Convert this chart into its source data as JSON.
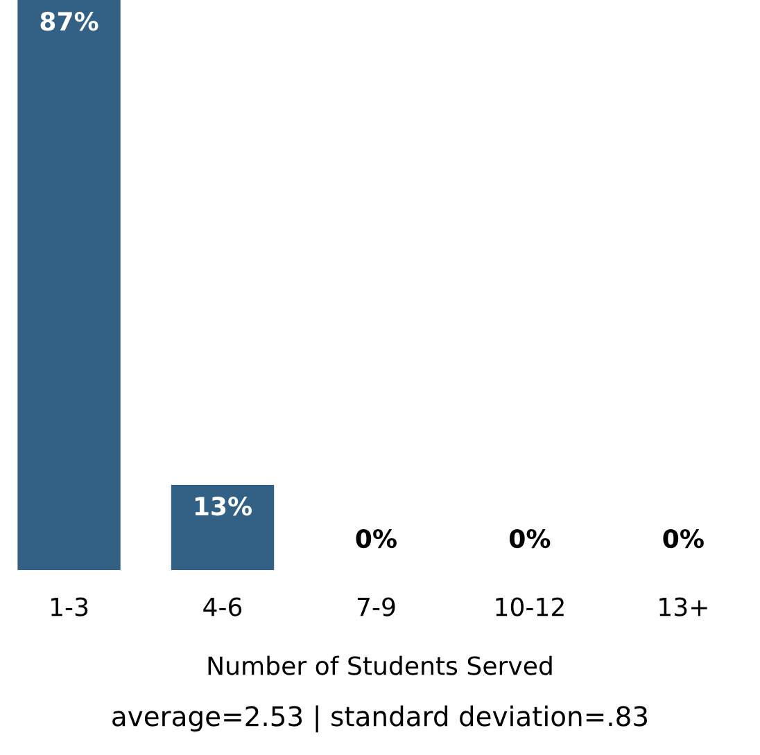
{
  "chart_data": {
    "type": "bar",
    "categories": [
      "1-3",
      "4-6",
      "7-9",
      "10-12",
      "13+"
    ],
    "values": [
      87,
      13,
      0,
      0,
      0
    ],
    "value_labels": [
      "87%",
      "13%",
      "0%",
      "0%",
      "0%"
    ],
    "color": "#336186",
    "xlabel": "Number of Students Served",
    "annotations": [
      "average=2.53 | standard deviation=.83"
    ],
    "grid": false,
    "legend": false
  }
}
